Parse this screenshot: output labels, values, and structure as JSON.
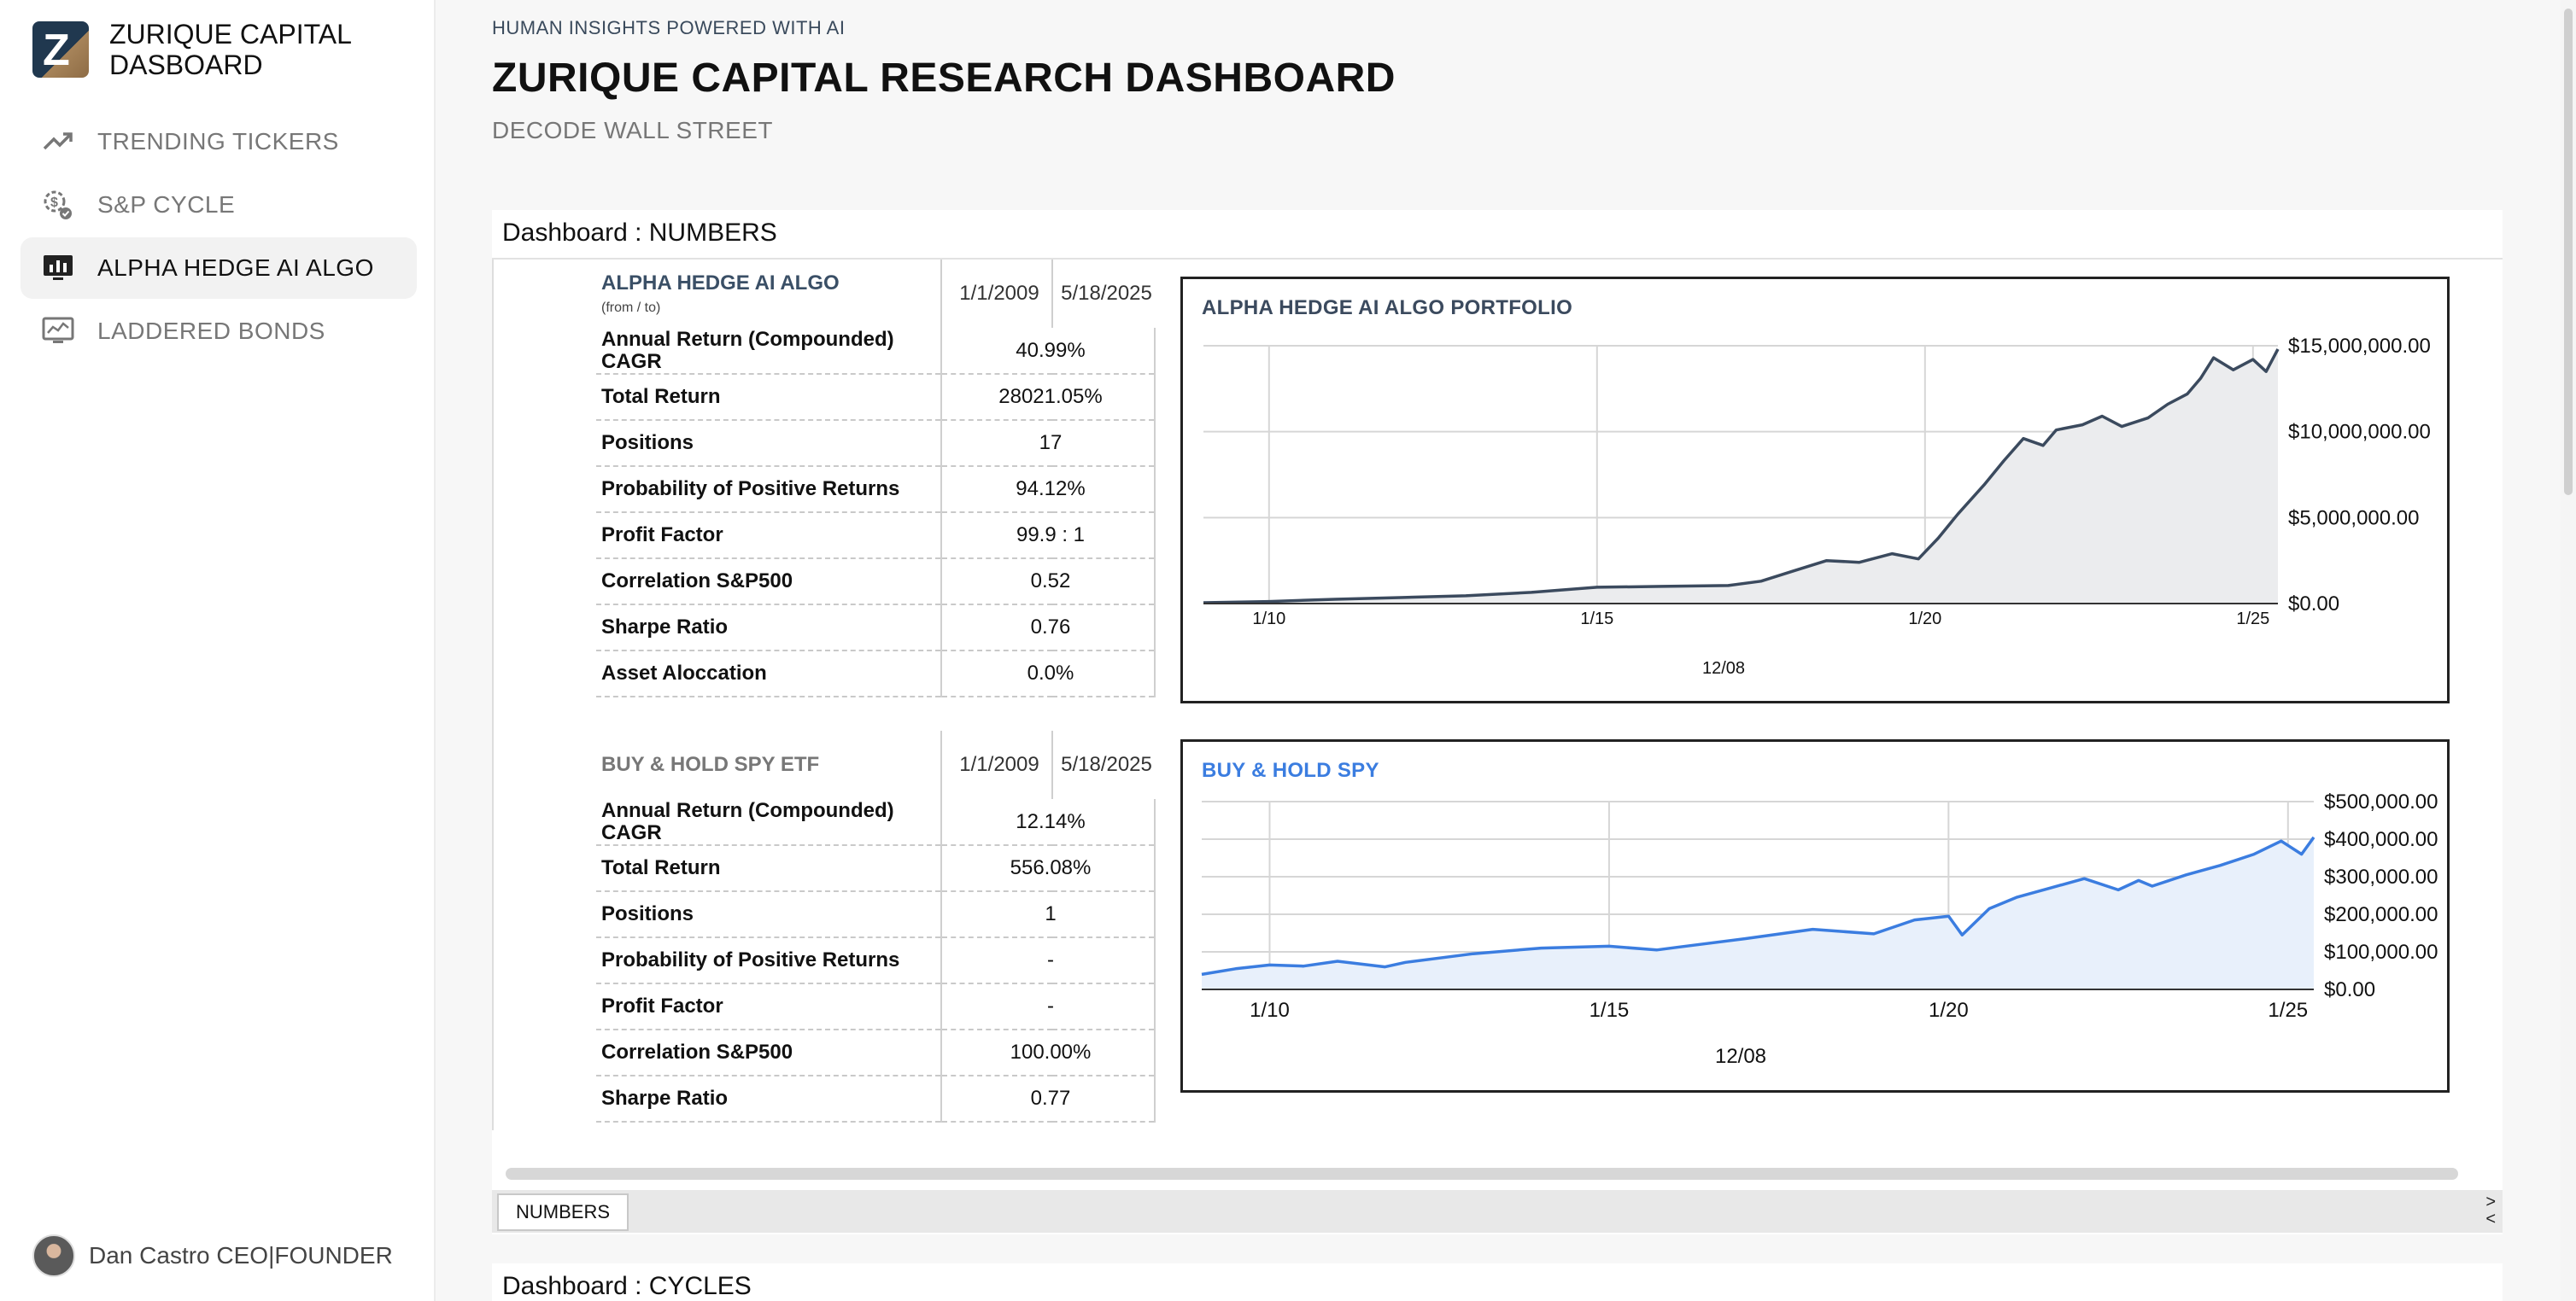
{
  "brand": {
    "title_line1": "ZURIQUE CAPITAL",
    "title_line2": "DASBOARD",
    "logo_letter": "Z"
  },
  "nav": [
    {
      "label": "TRENDING TICKERS",
      "icon": "trending-up-icon",
      "active": false
    },
    {
      "label": "S&P CYCLE",
      "icon": "cycle-icon",
      "active": false
    },
    {
      "label": "ALPHA HEDGE AI ALGO",
      "icon": "chart-monitor-icon",
      "active": true
    },
    {
      "label": "LADDERED BONDS",
      "icon": "analytics-monitor-icon",
      "active": false
    }
  ],
  "user": {
    "name": "Dan Castro CEO|FOUNDER"
  },
  "header": {
    "kicker": "HUMAN INSIGHTS POWERED WITH AI",
    "title": "ZURIQUE CAPITAL RESEARCH DASHBOARD",
    "subtitle": "DECODE WALL STREET"
  },
  "panel": {
    "title": "Dashboard : NUMBERS",
    "tab_label": "NUMBERS",
    "tab_arrows": ">\n<"
  },
  "panel2": {
    "title": "Dashboard : CYCLES"
  },
  "algo_table": {
    "title": "ALPHA HEDGE AI ALGO",
    "note": "(from / to)",
    "from": "1/1/2009",
    "to": "5/18/2025",
    "rows": [
      {
        "label": "Annual Return (Compounded) CAGR",
        "value": "40.99%"
      },
      {
        "label": "Total Return",
        "value": "28021.05%"
      },
      {
        "label": "Positions",
        "value": "17"
      },
      {
        "label": "Probability of Positive Returns",
        "value": "94.12%"
      },
      {
        "label": "Profit Factor",
        "value": "99.9  : 1"
      },
      {
        "label": "Correlation S&P500",
        "value": "0.52"
      },
      {
        "label": "Sharpe Ratio",
        "value": "0.76"
      },
      {
        "label": "Asset Aloccation",
        "value": "0.0%"
      }
    ]
  },
  "spy_table": {
    "title": "BUY & HOLD SPY ETF",
    "from": "1/1/2009",
    "to": "5/18/2025",
    "rows": [
      {
        "label": "Annual Return (Compounded) CAGR",
        "value": "12.14%"
      },
      {
        "label": "Total Return",
        "value": "556.08%"
      },
      {
        "label": "Positions",
        "value": "1"
      },
      {
        "label": "Probability of Positive Returns",
        "value": "-"
      },
      {
        "label": "Profit Factor",
        "value": "-"
      },
      {
        "label": "Correlation S&P500",
        "value": "100.00%"
      },
      {
        "label": "Sharpe Ratio",
        "value": "0.77"
      }
    ]
  },
  "colors": {
    "algo_line": "#3b4a5e",
    "algo_fill": "#ebecee",
    "spy_line": "#3b7de0",
    "spy_fill": "#e8f0fb",
    "alert": "#e06a3c"
  },
  "chart_data": [
    {
      "type": "area",
      "title": "ALPHA HEDGE AI ALGO PORTFOLIO",
      "xlabel": "12/08",
      "x_ticks": [
        "1/10",
        "1/15",
        "1/20",
        "1/25"
      ],
      "y_ticks": [
        "$15,000,000.00",
        "$10,000,000.00",
        "$5,000,000.00",
        "$0.00"
      ],
      "ylim": [
        0,
        15000000
      ],
      "xlim": [
        2009.0,
        2025.38
      ],
      "grid": true,
      "series": [
        {
          "x": [
            2009.0,
            2010.0,
            2011.0,
            2012.0,
            2013.0,
            2014.0,
            2015.0,
            2016.0,
            2017.0,
            2017.5,
            2018.0,
            2018.5,
            2019.0,
            2019.5,
            2019.9,
            2020.2,
            2020.5,
            2020.9,
            2021.2,
            2021.5,
            2021.8,
            2022.0,
            2022.4,
            2022.7,
            2023.0,
            2023.4,
            2023.7,
            2024.0,
            2024.2,
            2024.4,
            2024.7,
            2025.0,
            2025.2,
            2025.38
          ],
          "y": [
            50000,
            120000,
            250000,
            350000,
            450000,
            650000,
            950000,
            1000000,
            1050000,
            1300000,
            1900000,
            2500000,
            2400000,
            2900000,
            2600000,
            3800000,
            5200000,
            6900000,
            8300000,
            9600000,
            9200000,
            10100000,
            10400000,
            10900000,
            10300000,
            10800000,
            11600000,
            12200000,
            13100000,
            14300000,
            13600000,
            14200000,
            13500000,
            14800000
          ]
        }
      ]
    },
    {
      "type": "area",
      "title": "BUY & HOLD SPY",
      "xlabel": "12/08",
      "x_ticks": [
        "1/10",
        "1/15",
        "1/20",
        "1/25"
      ],
      "y_ticks": [
        "$500,000.00",
        "$400,000.00",
        "$300,000.00",
        "$200,000.00",
        "$100,000.00",
        "$0.00"
      ],
      "ylim": [
        0,
        500000
      ],
      "xlim": [
        2009.0,
        2025.38
      ],
      "grid": true,
      "series": [
        {
          "x": [
            2009.0,
            2009.5,
            2010.0,
            2010.5,
            2011.0,
            2011.7,
            2012.0,
            2013.0,
            2014.0,
            2015.0,
            2015.7,
            2016.0,
            2017.0,
            2018.0,
            2018.9,
            2019.5,
            2020.0,
            2020.2,
            2020.6,
            2021.0,
            2021.5,
            2022.0,
            2022.5,
            2022.8,
            2023.0,
            2023.5,
            2024.0,
            2024.5,
            2024.9,
            2025.2,
            2025.38
          ],
          "y": [
            40000,
            55000,
            65000,
            62000,
            75000,
            60000,
            72000,
            95000,
            110000,
            115000,
            105000,
            112000,
            135000,
            160000,
            148000,
            185000,
            195000,
            145000,
            215000,
            245000,
            270000,
            295000,
            265000,
            290000,
            275000,
            305000,
            330000,
            360000,
            395000,
            360000,
            405000
          ]
        }
      ]
    }
  ]
}
